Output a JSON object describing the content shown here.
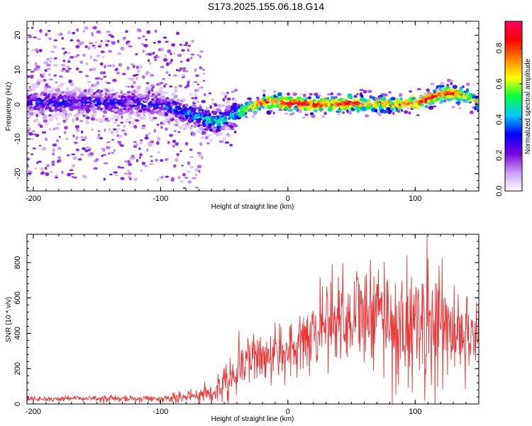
{
  "figure_title": "S173.2025.155.06.18.G14",
  "chart_data": [
    {
      "type": "heatmap",
      "title": "",
      "xlabel": "Height of straight line (km)",
      "ylabel": "Frequency (Hz)",
      "xlim": [
        -205,
        150
      ],
      "ylim": [
        -25,
        24
      ],
      "x_ticks": [
        -200,
        -100,
        0,
        100
      ],
      "y_ticks": [
        -20,
        -10,
        0,
        10,
        20
      ],
      "x_tick_labels": [
        "-200",
        "-100",
        "0",
        "100"
      ],
      "y_tick_labels": [
        "-20",
        "-10",
        "0",
        "10",
        "20"
      ],
      "ridge": {
        "x": [
          -205,
          -180,
          -150,
          -120,
          -100,
          -90,
          -80,
          -70,
          -60,
          -55,
          -50,
          -45,
          -40,
          -35,
          -30,
          -20,
          -10,
          0,
          10,
          20,
          30,
          40,
          50,
          60,
          70,
          80,
          90,
          100,
          110,
          120,
          130,
          140,
          150
        ],
        "frequency": [
          0.5,
          0.6,
          0.4,
          0.2,
          -0.2,
          -1.0,
          -2.5,
          -3.5,
          -4.8,
          -5.0,
          -4.5,
          -3.8,
          -2.5,
          -1.6,
          -0.8,
          0.5,
          0.7,
          0.3,
          0.2,
          0.0,
          0.2,
          0.0,
          0.5,
          0.2,
          0.0,
          0.2,
          0.0,
          0.3,
          1.5,
          3.0,
          3.2,
          2.5,
          0.5
        ],
        "peak_amplitude": [
          0.3,
          0.3,
          0.3,
          0.3,
          0.3,
          0.35,
          0.4,
          0.45,
          0.5,
          0.55,
          0.5,
          0.5,
          0.55,
          0.6,
          0.7,
          0.85,
          0.8,
          0.95,
          0.9,
          0.85,
          0.8,
          0.85,
          0.9,
          0.7,
          0.75,
          0.7,
          0.75,
          0.8,
          0.9,
          0.8,
          0.85,
          0.7,
          0.6
        ]
      },
      "colorbar": {
        "label": "Normalized spectral amplitude",
        "range": [
          0.0,
          0.95
        ],
        "ticks": [
          0.0,
          0.2,
          0.4,
          0.6,
          0.8
        ],
        "tick_labels": [
          "0.0",
          "0.2",
          "0.4",
          "0.6",
          "0.8"
        ],
        "colors": [
          "#ffffff",
          "#c79bf5",
          "#7a00e0",
          "#0000ff",
          "#00c8ff",
          "#00ff40",
          "#ffff00",
          "#ff8000",
          "#ff0000",
          "#ff0066"
        ]
      },
      "grid": false
    },
    {
      "type": "line",
      "title": "",
      "xlabel": "Height of straight line (km)",
      "ylabel": "SNR (10 * v/v)",
      "xlim": [
        -205,
        150
      ],
      "ylim": [
        0,
        960
      ],
      "x_ticks": [
        -200,
        -100,
        0,
        100
      ],
      "y_ticks": [
        0,
        200,
        400,
        600,
        800
      ],
      "x_tick_labels": [
        "-200",
        "-100",
        "0",
        "100"
      ],
      "y_tick_labels": [
        "0",
        "200",
        "400",
        "600",
        "800"
      ],
      "line_color": "#ee3333",
      "series_points": {
        "x": [
          -205,
          -180,
          -150,
          -120,
          -100,
          -90,
          -80,
          -75,
          -70,
          -60,
          -50,
          -40,
          -30,
          -20,
          -10,
          0,
          10,
          20,
          30,
          40,
          50,
          60,
          70,
          80,
          90,
          100,
          110,
          120,
          130,
          140,
          150
        ],
        "y": [
          25,
          30,
          30,
          30,
          30,
          30,
          40,
          60,
          45,
          70,
          120,
          200,
          280,
          260,
          290,
          280,
          330,
          400,
          500,
          480,
          530,
          470,
          500,
          480,
          420,
          450,
          470,
          430,
          400,
          430,
          380
        ]
      },
      "envelope_max": {
        "x": [
          -205,
          -150,
          -100,
          -80,
          -60,
          -50,
          -40,
          -30,
          -20,
          -10,
          0,
          10,
          20,
          30,
          40,
          50,
          60,
          70,
          80,
          90,
          100,
          110,
          120,
          130,
          140,
          150
        ],
        "y": [
          45,
          50,
          50,
          80,
          140,
          260,
          400,
          480,
          430,
          460,
          450,
          550,
          700,
          780,
          800,
          910,
          760,
          880,
          870,
          830,
          860,
          960,
          840,
          710,
          760,
          600
        ]
      },
      "grid": false
    }
  ]
}
